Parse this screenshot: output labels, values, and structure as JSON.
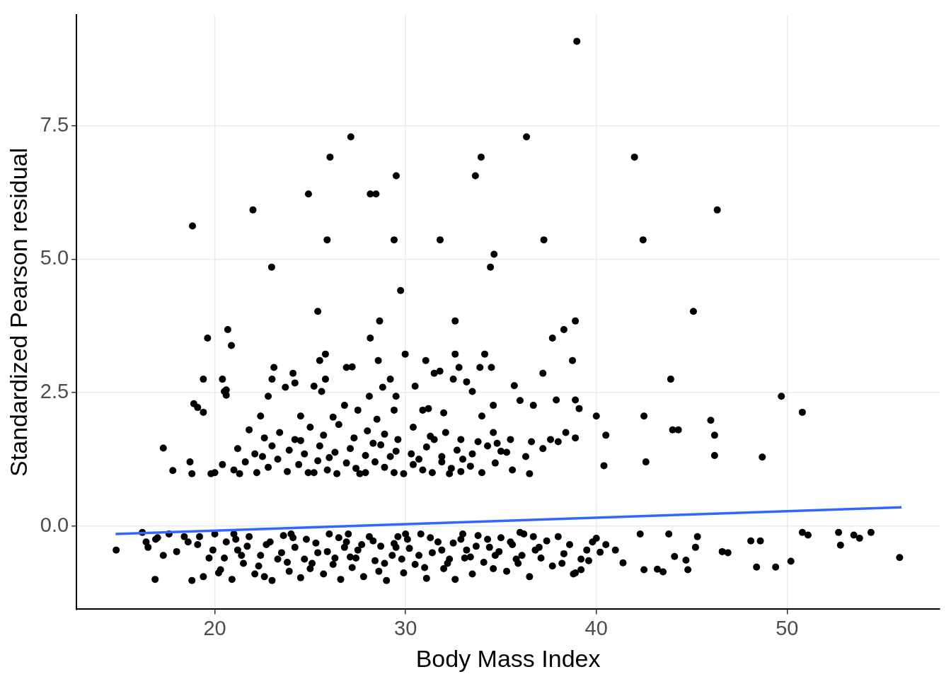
{
  "chart_data": {
    "type": "scatter",
    "x_label": "Body Mass Index",
    "y_label": "Standardized Pearson residual",
    "xlim": [
      12.75,
      58
    ],
    "ylim": [
      -1.56,
      9.57
    ],
    "xticks": [
      20,
      30,
      40,
      50
    ],
    "yticks": [
      {
        "value": 0,
        "label": "0.0"
      },
      {
        "value": 2.5,
        "label": "2.5"
      },
      {
        "value": 5,
        "label": "5.0"
      },
      {
        "value": 7.5,
        "label": "7.5"
      }
    ],
    "grid": true,
    "series": [
      {
        "type": "line",
        "color": "#3366ff",
        "x": [
          14.8,
          56.0
        ],
        "values": [
          -0.15,
          0.35
        ]
      },
      {
        "type": "scatter",
        "color": "#000000",
        "marker": "circle",
        "x": [
          38.98,
          27.13,
          36.34,
          26.04,
          33.96,
          42.0,
          29.51,
          33.66,
          24.91,
          28.15,
          28.45,
          22.0,
          46.34,
          18.83,
          25.89,
          29.4,
          31.81,
          37.25,
          42.45,
          34.64,
          22.98,
          34.45,
          29.74,
          25.4,
          45.09,
          28.64,
          32.6,
          38.9,
          19.62,
          37.7,
          20.68,
          38.3,
          28.15,
          20.87,
          25.8,
          29.98,
          32.6,
          34.15,
          25.5,
          28.57,
          31.06,
          38.75,
          23.1,
          26.9,
          32.8,
          33.9,
          34.5,
          37.2,
          31.5,
          24.1,
          19.4,
          20.4,
          23.0,
          25.8,
          29.2,
          32.5,
          43.9,
          20.5,
          23.7,
          25.2,
          28.8,
          30.5,
          33.5,
          35.7,
          22.8,
          25.6,
          28.1,
          29.5,
          49.7,
          38.9,
          37.9,
          18.9,
          19.1,
          19.4,
          26.8,
          27.5,
          29.4,
          30.9,
          34.6,
          36.7,
          39.1,
          50.8,
          22.4,
          24.5,
          26.2,
          28.5,
          32.0,
          34.0,
          40.0,
          42.5,
          46.0,
          20.6,
          20.6,
          31.2,
          31.8,
          24.2,
          27.2,
          33.2,
          36.0,
          44.0,
          21.8,
          22.6,
          23.4,
          24.2,
          25.0,
          25.7,
          26.5,
          27.3,
          28.0,
          28.9,
          29.6,
          30.4,
          31.3,
          32.1,
          32.9,
          33.8,
          34.6,
          35.5,
          36.6,
          37.6,
          38.4,
          38.9,
          40.5,
          44.3,
          46.2,
          17.3,
          21.2,
          22.1,
          23.0,
          23.9,
          24.7,
          25.5,
          26.3,
          27.1,
          27.9,
          28.7,
          29.5,
          30.3,
          31.1,
          31.9,
          32.7,
          33.5,
          34.3,
          35.3,
          36.3,
          37.2,
          38.0,
          46.2,
          48.7,
          18.7,
          17.8,
          18.8,
          19.8,
          20.4,
          21.0,
          21.6,
          22.2,
          22.8,
          23.3,
          23.8,
          24.4,
          24.9,
          25.4,
          25.9,
          26.4,
          26.9,
          27.4,
          27.9,
          28.4,
          28.9,
          29.4,
          29.9,
          30.4,
          30.9,
          31.4,
          31.9,
          32.4,
          32.9,
          33.4,
          34.0,
          34.7,
          35.6,
          36.5,
          40.4,
          42.6,
          20.0,
          21.3,
          22.5,
          25.2,
          26.0,
          27.6,
          29.2,
          30.7,
          32.3,
          33.0,
          35.0,
          24.5,
          28.3,
          31.5,
          34.8,
          14.83,
          16.87,
          55.9,
          54.4,
          52.7,
          52.8,
          53.5,
          53.8,
          50.2,
          49.4,
          48.4,
          48.1,
          48.6,
          46.6,
          50.8,
          51.1,
          45.2,
          45.3,
          44.7,
          44.1,
          43.2,
          43.5,
          42.5,
          44.8,
          41.4,
          40.2,
          40.0,
          46.9,
          42.3,
          43.8,
          16.2,
          16.5,
          16.9,
          17.3,
          17.6,
          18.0,
          18.4,
          18.8,
          19.1,
          19.4,
          19.7,
          20.0,
          20.3,
          20.6,
          20.9,
          21.2,
          21.5,
          21.8,
          22.1,
          22.4,
          22.7,
          23.0,
          23.3,
          23.6,
          23.9,
          24.2,
          24.5,
          24.8,
          25.1,
          25.4,
          25.7,
          26.0,
          26.3,
          26.6,
          26.9,
          27.2,
          27.5,
          27.8,
          28.1,
          28.4,
          28.7,
          29.0,
          29.3,
          29.6,
          29.9,
          30.2,
          30.5,
          30.8,
          31.1,
          31.4,
          31.7,
          32.0,
          32.3,
          32.6,
          32.9,
          33.2,
          33.5,
          33.8,
          34.1,
          34.4,
          34.7,
          35.0,
          35.3,
          35.6,
          35.9,
          36.2,
          36.5,
          36.8,
          37.1,
          37.4,
          37.7,
          38.0,
          38.3,
          38.6,
          38.9,
          39.2,
          39.5,
          39.8,
          38.8,
          39.2,
          19.2,
          19.9,
          20.5,
          21.1,
          21.7,
          22.3,
          22.9,
          23.5,
          24.1,
          24.7,
          25.3,
          25.9,
          26.5,
          27.1,
          27.7,
          28.3,
          28.9,
          29.5,
          30.1,
          30.7,
          31.3,
          31.9,
          32.5,
          33.1,
          33.7,
          34.3,
          34.9,
          35.5,
          36.1,
          36.7,
          20.2,
          21.4,
          22.6,
          23.8,
          25.0,
          26.2,
          27.4,
          28.6,
          29.8,
          31.0,
          32.2,
          33.4,
          34.6,
          35.8,
          37.0,
          38.2,
          21.0,
          24.0,
          27.0,
          30.0,
          33.0,
          36.0,
          18.6,
          17.0,
          16.4,
          40.5,
          41.0,
          39.6,
          26.8,
          29.4
        ],
        "values": [
          9.08,
          7.29,
          7.29,
          6.91,
          6.91,
          6.91,
          6.56,
          6.56,
          6.22,
          6.22,
          6.22,
          5.92,
          5.92,
          5.62,
          5.36,
          5.36,
          5.36,
          5.36,
          5.36,
          5.09,
          4.85,
          4.85,
          4.41,
          4.02,
          4.02,
          3.84,
          3.84,
          3.84,
          3.52,
          3.52,
          3.68,
          3.68,
          3.52,
          3.38,
          3.22,
          3.22,
          3.22,
          3.22,
          3.1,
          3.1,
          3.1,
          3.1,
          2.97,
          2.97,
          2.97,
          2.97,
          2.97,
          2.86,
          2.86,
          2.86,
          2.75,
          2.75,
          2.75,
          2.75,
          2.75,
          2.75,
          2.75,
          2.52,
          2.6,
          2.62,
          2.6,
          2.62,
          2.52,
          2.63,
          2.43,
          2.52,
          2.43,
          2.43,
          2.43,
          2.36,
          2.36,
          2.29,
          2.22,
          2.13,
          2.26,
          2.17,
          2.17,
          2.17,
          2.26,
          2.26,
          2.2,
          2.13,
          2.06,
          2.06,
          2.04,
          2.0,
          2.12,
          2.06,
          2.06,
          2.06,
          1.98,
          2.45,
          2.55,
          2.2,
          2.9,
          2.68,
          2.98,
          2.7,
          2.35,
          1.8,
          1.8,
          1.65,
          1.75,
          1.62,
          1.85,
          1.7,
          1.9,
          1.65,
          1.78,
          1.72,
          1.62,
          1.85,
          1.68,
          1.75,
          1.62,
          1.58,
          1.75,
          1.62,
          1.58,
          1.62,
          1.75,
          1.65,
          1.7,
          1.8,
          1.7,
          1.46,
          1.45,
          1.35,
          1.5,
          1.42,
          1.35,
          1.5,
          1.38,
          1.45,
          1.32,
          1.52,
          1.4,
          1.35,
          1.48,
          1.3,
          1.42,
          1.35,
          1.5,
          1.38,
          1.3,
          1.45,
          1.58,
          1.32,
          1.29,
          1.2,
          1.04,
          0.98,
          0.98,
          1.15,
          1.05,
          1.2,
          1.0,
          1.1,
          1.25,
          1.02,
          1.15,
          1.0,
          1.22,
          1.05,
          0.98,
          1.18,
          1.08,
          1.0,
          1.2,
          1.1,
          1.0,
          0.98,
          1.15,
          1.05,
          1.0,
          1.2,
          1.08,
          1.02,
          1.12,
          1.0,
          1.18,
          1.05,
          0.98,
          1.13,
          1.2,
          1.0,
          0.98,
          1.3,
          1.0,
          1.28,
          0.98,
          1.3,
          1.25,
          0.98,
          1.25,
          1.4,
          1.6,
          1.55,
          1.62,
          1.55,
          -0.45,
          -1.0,
          -0.59,
          -0.12,
          -0.12,
          -0.36,
          -0.17,
          -0.23,
          -0.66,
          -0.77,
          -0.77,
          -0.28,
          -0.28,
          -0.48,
          -0.12,
          -0.17,
          -0.4,
          -0.2,
          -0.64,
          -0.57,
          -0.81,
          -0.86,
          -0.82,
          -0.82,
          -0.69,
          -0.49,
          -0.23,
          -0.5,
          -0.15,
          -0.15,
          -0.12,
          -0.4,
          -0.25,
          -0.55,
          -0.15,
          -0.48,
          -0.2,
          -1.02,
          -0.35,
          -0.95,
          -0.6,
          -0.15,
          -0.82,
          -0.3,
          -1.0,
          -0.45,
          -0.7,
          -0.2,
          -0.9,
          -0.55,
          -0.35,
          -1.02,
          -0.62,
          -0.18,
          -0.85,
          -0.4,
          -0.97,
          -0.25,
          -0.7,
          -0.5,
          -0.9,
          -0.15,
          -0.6,
          -1.0,
          -0.3,
          -0.78,
          -0.45,
          -0.95,
          -0.2,
          -0.65,
          -0.38,
          -1.02,
          -0.55,
          -0.2,
          -0.88,
          -0.42,
          -0.72,
          -0.15,
          -0.98,
          -0.5,
          -0.3,
          -0.8,
          -0.62,
          -1.0,
          -0.25,
          -0.45,
          -0.9,
          -0.18,
          -0.68,
          -0.4,
          -0.55,
          -0.22,
          -0.85,
          -0.35,
          -0.7,
          -0.15,
          -0.95,
          -0.45,
          -0.6,
          -0.28,
          -0.75,
          -0.2,
          -0.52,
          -0.35,
          -0.88,
          -0.62,
          -0.45,
          -0.3,
          -0.9,
          -0.82,
          -0.2,
          -0.45,
          -0.6,
          -0.25,
          -0.38,
          -0.75,
          -0.3,
          -0.5,
          -0.22,
          -0.62,
          -0.32,
          -0.48,
          -0.22,
          -0.58,
          -0.35,
          -0.28,
          -0.7,
          -0.4,
          -0.25,
          -0.55,
          -0.22,
          -0.45,
          -0.32,
          -0.6,
          -0.38,
          -0.25,
          -0.48,
          -0.3,
          -0.55,
          -0.2,
          -0.88,
          -0.55,
          -0.95,
          -0.68,
          -0.8,
          -0.72,
          -0.6,
          -0.85,
          -0.62,
          -0.78,
          -0.7,
          -0.58,
          -0.8,
          -0.62,
          -0.4,
          -0.7,
          -0.15,
          -0.15,
          -0.15,
          -0.15,
          -0.15,
          -0.12,
          -0.3,
          -0.22,
          -0.3,
          -0.35,
          -0.45,
          -0.65,
          -0.4,
          -0.33
        ]
      }
    ]
  }
}
